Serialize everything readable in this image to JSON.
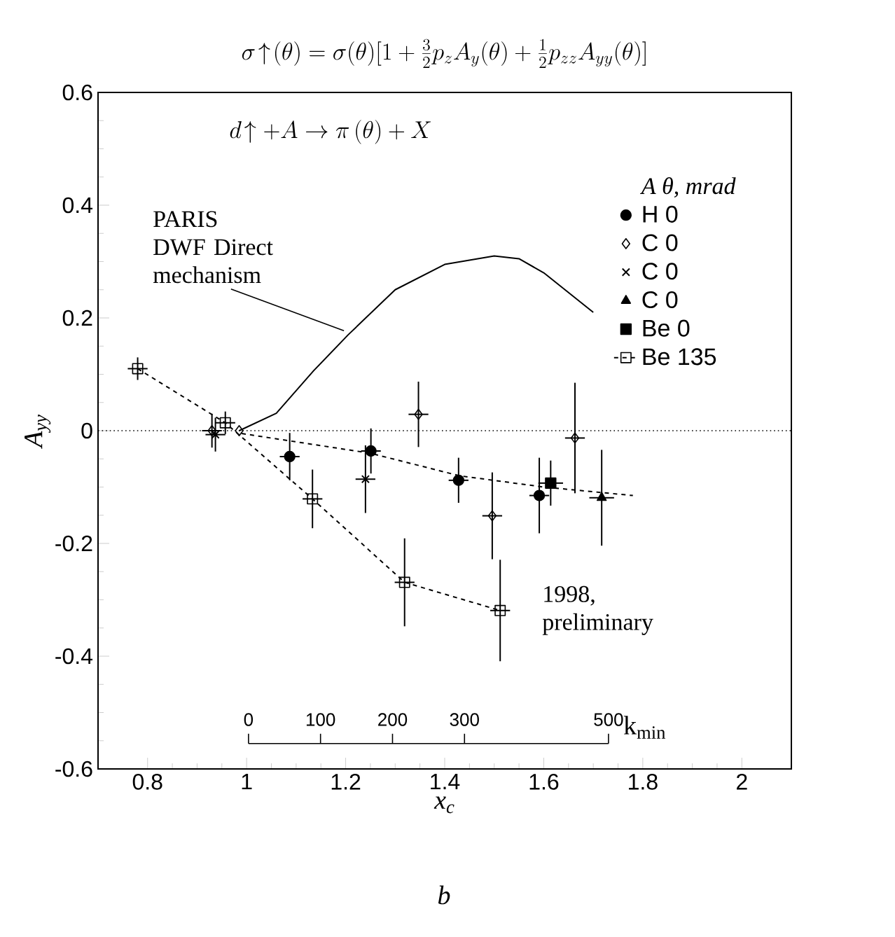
{
  "chart_data": {
    "type": "scatter",
    "title": "\\sigma\\!\\uparrow\\!(\\theta) = \\sigma(\\theta)[1 + \\frac{3}{2}p_z A_y(\\theta) + \\frac{1}{2}p_{zz}A_{yy}(\\theta)]",
    "subtitle": "d\\!\\uparrow + A \\to \\pi\\,(\\theta) + X",
    "xlabel": "x$_{c}$",
    "ylabel": "A$_{yy}$",
    "legend_title": "*A*  θ, mrad",
    "x2label": "k$_{min}$",
    "xlim": [
      0.7,
      2.1
    ],
    "xticks": [
      0.8,
      1,
      1.2,
      1.4,
      1.6,
      1.8,
      2
    ],
    "ylim": [
      -0.6,
      0.6
    ],
    "yticks": [
      -0.6,
      -0.4,
      -0.2,
      0,
      0.2,
      0.4,
      0.6
    ],
    "x2lim": [
      -209,
      754
    ],
    "x2ticks": [
      0,
      100,
      200,
      300,
      500
    ],
    "legend": "right",
    "grid": false,
    "ref_lines": [
      {
        "axis": "y",
        "value": 0,
        "line_style": "dotted"
      }
    ],
    "annotations": [
      {
        "text": "1998, preliminary",
        "x": 1.512,
        "y": -0.319
      },
      "b"
    ],
    "series": [
      {
        "name": "H 0",
        "color": "#000000",
        "marker": "circle",
        "x": [
          1.087,
          1.251,
          1.428,
          1.591
        ],
        "values": [
          -0.046,
          -0.036,
          -0.088,
          -0.115
        ],
        "errors": [
          0.042,
          0.04,
          0.04,
          0.067
        ],
        "xerrors": [
          0.02,
          0.02,
          0.02,
          0.02
        ]
      },
      {
        "name": "C 0",
        "color": "#000000",
        "marker": "diamond-open",
        "x": [
          0.93,
          0.985,
          1.347,
          1.496,
          1.663
        ],
        "values": [
          0,
          0,
          0.029,
          -0.151,
          -0.013
        ],
        "errors": [
          0.03,
          null,
          0.058,
          0.077,
          0.098
        ],
        "xerrors": [
          0.02,
          null,
          0.02,
          0.02,
          0.02
        ]
      },
      {
        "name": "C 0",
        "color": "#000000",
        "marker": "cross",
        "x": [
          0.937,
          1.24
        ],
        "values": [
          -0.007,
          -0.086
        ],
        "errors": [
          0.03,
          0.06
        ],
        "xerrors": [
          0.02,
          0.02
        ]
      },
      {
        "name": "C 0",
        "color": "#000000",
        "marker": "triangle",
        "x": [
          1.717
        ],
        "values": [
          -0.119
        ],
        "errors": [
          0.085
        ],
        "xerrors": [
          0.025
        ]
      },
      {
        "name": "Be 0",
        "color": "#000000",
        "marker": "square",
        "x": [
          1.614
        ],
        "values": [
          -0.093
        ],
        "errors": [
          0.04
        ],
        "xerrors": [
          0.025
        ]
      },
      {
        "name": "Be 135",
        "type": "line",
        "line_style": "dashed",
        "color": "#000000",
        "marker": "square-open",
        "x": [
          0.78,
          0.957,
          1.133,
          1.319,
          1.512
        ],
        "values": [
          0.11,
          0.014,
          -0.121,
          -0.269,
          -0.319
        ],
        "errors": [
          0.02,
          0.02,
          0.052,
          0.078,
          0.09
        ],
        "xerrors": [
          0.02,
          0.02,
          0.02,
          0.02,
          0.02
        ]
      },
      {
        "type": "line",
        "line_style": "dashed",
        "color": "#000000",
        "marker": "none",
        "x": [
          0.99,
          1.25,
          1.43,
          1.6,
          1.78
        ],
        "values": [
          -0.005,
          -0.04,
          -0.08,
          -0.1,
          -0.115
        ]
      },
      {
        "name": "PARIS DWF Direct mechanism",
        "type": "line",
        "line_style": "solid",
        "color": "#000000",
        "marker": "none",
        "x": [
          0.985,
          1.06,
          1.135,
          1.205,
          1.3,
          1.4,
          1.5,
          1.55,
          1.6,
          1.65,
          1.7
        ],
        "values": [
          0,
          0.031,
          0.106,
          0.17,
          0.25,
          0.295,
          0.31,
          0.305,
          0.28,
          0.245,
          0.21
        ]
      }
    ]
  }
}
